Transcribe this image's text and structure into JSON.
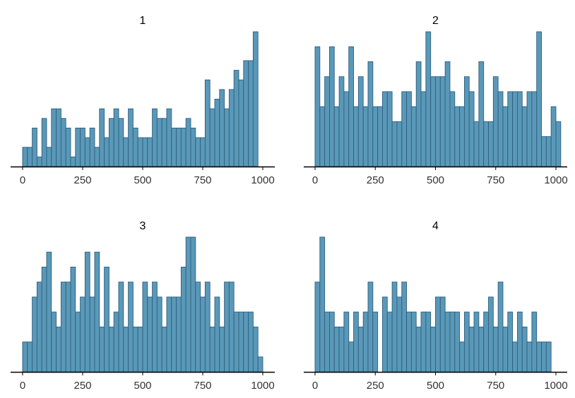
{
  "style": {
    "bar_fill": "#5a98b8",
    "bar_stroke": "#2f5f80",
    "axis_color": "#000000",
    "background": "#ffffff"
  },
  "chart_data": [
    {
      "type": "bar",
      "title": "1",
      "xlabel": "",
      "ylabel": "",
      "bin_width": 20,
      "bin_start": 0,
      "xlim": [
        0,
        1000
      ],
      "ylim": [
        0,
        14
      ],
      "xticks": [
        0,
        250,
        500,
        750,
        1000
      ],
      "grid": false,
      "values": [
        2,
        2,
        4,
        1,
        5,
        2,
        6,
        6,
        5,
        4,
        1,
        4,
        4,
        3,
        4,
        2,
        6,
        3,
        5,
        6,
        5,
        3,
        6,
        4,
        3,
        3,
        3,
        6,
        5,
        5,
        6,
        4,
        4,
        4,
        5,
        4,
        3,
        3,
        9,
        6,
        7,
        8,
        6,
        8,
        10,
        9,
        11,
        11,
        14
      ]
    },
    {
      "type": "bar",
      "title": "2",
      "xlabel": "",
      "ylabel": "",
      "bin_width": 20,
      "bin_start": 0,
      "xlim": [
        0,
        1000
      ],
      "ylim": [
        0,
        9
      ],
      "xticks": [
        0,
        250,
        500,
        750,
        1000
      ],
      "grid": false,
      "values": [
        8,
        4,
        6,
        8,
        4,
        6,
        5,
        8,
        4,
        6,
        4,
        7,
        4,
        4,
        5,
        5,
        3,
        3,
        5,
        5,
        4,
        7,
        5,
        9,
        6,
        6,
        6,
        7,
        5,
        4,
        4,
        6,
        5,
        3,
        7,
        3,
        3,
        6,
        5,
        4,
        5,
        5,
        5,
        4,
        5,
        5,
        9,
        2,
        2,
        4,
        3
      ]
    },
    {
      "type": "bar",
      "title": "3",
      "xlabel": "",
      "ylabel": "",
      "bin_width": 20,
      "bin_start": 0,
      "xlim": [
        0,
        1000
      ],
      "ylim": [
        0,
        9
      ],
      "xticks": [
        0,
        250,
        500,
        750,
        1000
      ],
      "grid": false,
      "values": [
        2,
        2,
        5,
        6,
        7,
        8,
        4,
        3,
        6,
        6,
        7,
        4,
        5,
        8,
        5,
        8,
        3,
        7,
        3,
        4,
        6,
        3,
        6,
        3,
        3,
        6,
        5,
        6,
        5,
        3,
        5,
        5,
        5,
        7,
        9,
        9,
        6,
        5,
        6,
        3,
        5,
        3,
        6,
        6,
        4,
        4,
        4,
        4,
        3,
        1
      ]
    },
    {
      "type": "bar",
      "title": "4",
      "xlabel": "",
      "ylabel": "",
      "bin_width": 20,
      "bin_start": 0,
      "xlim": [
        0,
        1000
      ],
      "ylim": [
        0,
        9
      ],
      "xticks": [
        0,
        250,
        500,
        750,
        1000
      ],
      "grid": false,
      "values": [
        6,
        9,
        4,
        4,
        3,
        3,
        4,
        2,
        4,
        3,
        4,
        6,
        4,
        0,
        5,
        4,
        6,
        5,
        6,
        4,
        4,
        3,
        4,
        4,
        3,
        5,
        5,
        4,
        4,
        4,
        2,
        4,
        3,
        4,
        3,
        4,
        5,
        3,
        6,
        3,
        4,
        2,
        4,
        3,
        2,
        4,
        2,
        2,
        2
      ]
    }
  ]
}
